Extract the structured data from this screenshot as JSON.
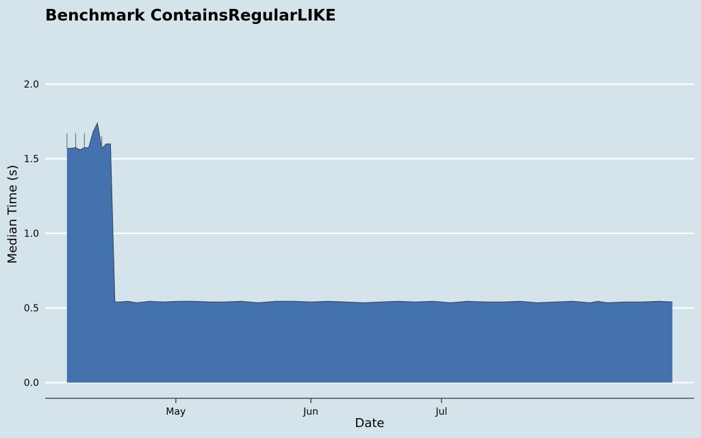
{
  "chart_data": {
    "type": "area",
    "title": "Benchmark ContainsRegularLIKE",
    "xlabel": "Date",
    "ylabel": "Median Time (s)",
    "ylim": [
      0,
      2.0
    ],
    "y_ticks": [
      "0.0",
      "0.5",
      "1.0",
      "1.5",
      "2.0"
    ],
    "y_tick_values": [
      0,
      0.5,
      1.0,
      1.5,
      2.0
    ],
    "x_ticks": [
      "May",
      "Jun",
      "Jul"
    ],
    "x_tick_values": [
      "2023-05-01",
      "2023-06-01",
      "2023-07-01"
    ],
    "xlim": [
      "2023-04-01",
      "2023-08-28"
    ],
    "grid": true,
    "series_color": "#4472ae",
    "line_color": "#2f3f5a",
    "spike_color": "#6a7582",
    "x": [
      "2023-04-06",
      "2023-04-07",
      "2023-04-08",
      "2023-04-09",
      "2023-04-10",
      "2023-04-11",
      "2023-04-12",
      "2023-04-13",
      "2023-04-14",
      "2023-04-15",
      "2023-04-16",
      "2023-04-17",
      "2023-04-18",
      "2023-04-20",
      "2023-04-22",
      "2023-04-25",
      "2023-04-28",
      "2023-05-02",
      "2023-05-05",
      "2023-05-09",
      "2023-05-12",
      "2023-05-16",
      "2023-05-20",
      "2023-05-24",
      "2023-05-28",
      "2023-06-01",
      "2023-06-05",
      "2023-06-09",
      "2023-06-13",
      "2023-06-17",
      "2023-06-21",
      "2023-06-25",
      "2023-06-29",
      "2023-07-03",
      "2023-07-07",
      "2023-07-11",
      "2023-07-15",
      "2023-07-19",
      "2023-07-23",
      "2023-07-27",
      "2023-07-31",
      "2023-08-02",
      "2023-08-04",
      "2023-08-06",
      "2023-08-08",
      "2023-08-12",
      "2023-08-16",
      "2023-08-20",
      "2023-08-23"
    ],
    "values": [
      1.57,
      1.57,
      1.575,
      1.56,
      1.575,
      1.575,
      1.68,
      1.74,
      1.57,
      1.6,
      1.6,
      0.54,
      0.54,
      0.545,
      0.535,
      0.545,
      0.54,
      0.545,
      0.545,
      0.54,
      0.54,
      0.545,
      0.535,
      0.545,
      0.545,
      0.54,
      0.545,
      0.54,
      0.535,
      0.54,
      0.545,
      0.54,
      0.545,
      0.535,
      0.545,
      0.54,
      0.54,
      0.545,
      0.535,
      0.54,
      0.545,
      0.54,
      0.535,
      0.545,
      0.535,
      0.54,
      0.54,
      0.545,
      0.54
    ],
    "spikes": [
      {
        "x": "2023-04-06",
        "y": 1.67
      },
      {
        "x": "2023-04-08",
        "y": 1.67
      },
      {
        "x": "2023-04-10",
        "y": 1.67
      },
      {
        "x": "2023-04-14",
        "y": 1.65
      },
      {
        "x": "2023-04-15",
        "y": 1.6
      },
      {
        "x": "2023-04-16",
        "y": 0.57
      }
    ]
  }
}
